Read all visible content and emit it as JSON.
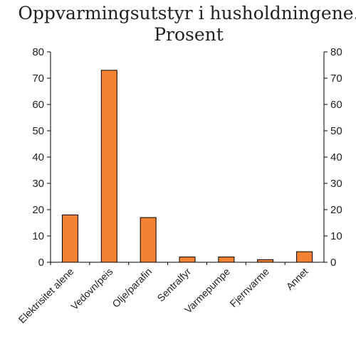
{
  "chart_data": {
    "type": "bar",
    "title": "Oppvarmingsutstyr i husholdningene. Prosent",
    "title_lines": [
      "Oppvarmingsutstyr i husholdningene.",
      "Prosent"
    ],
    "categories": [
      "Elektrisitet alene",
      "Vedovn/peis",
      "Olje/parafin",
      "Sentralfyr",
      "Varmepumpe",
      "Fjernvarme",
      "Annet"
    ],
    "values": [
      18,
      73,
      17,
      2,
      2,
      1,
      4
    ],
    "ylim": [
      0,
      80
    ],
    "yticks": [
      0,
      10,
      20,
      30,
      40,
      50,
      60,
      70,
      80
    ],
    "xlabel": "",
    "ylabel": "",
    "grid": false,
    "legend": "none",
    "bar_color": "#F58233",
    "secondary_y_axis": true
  }
}
